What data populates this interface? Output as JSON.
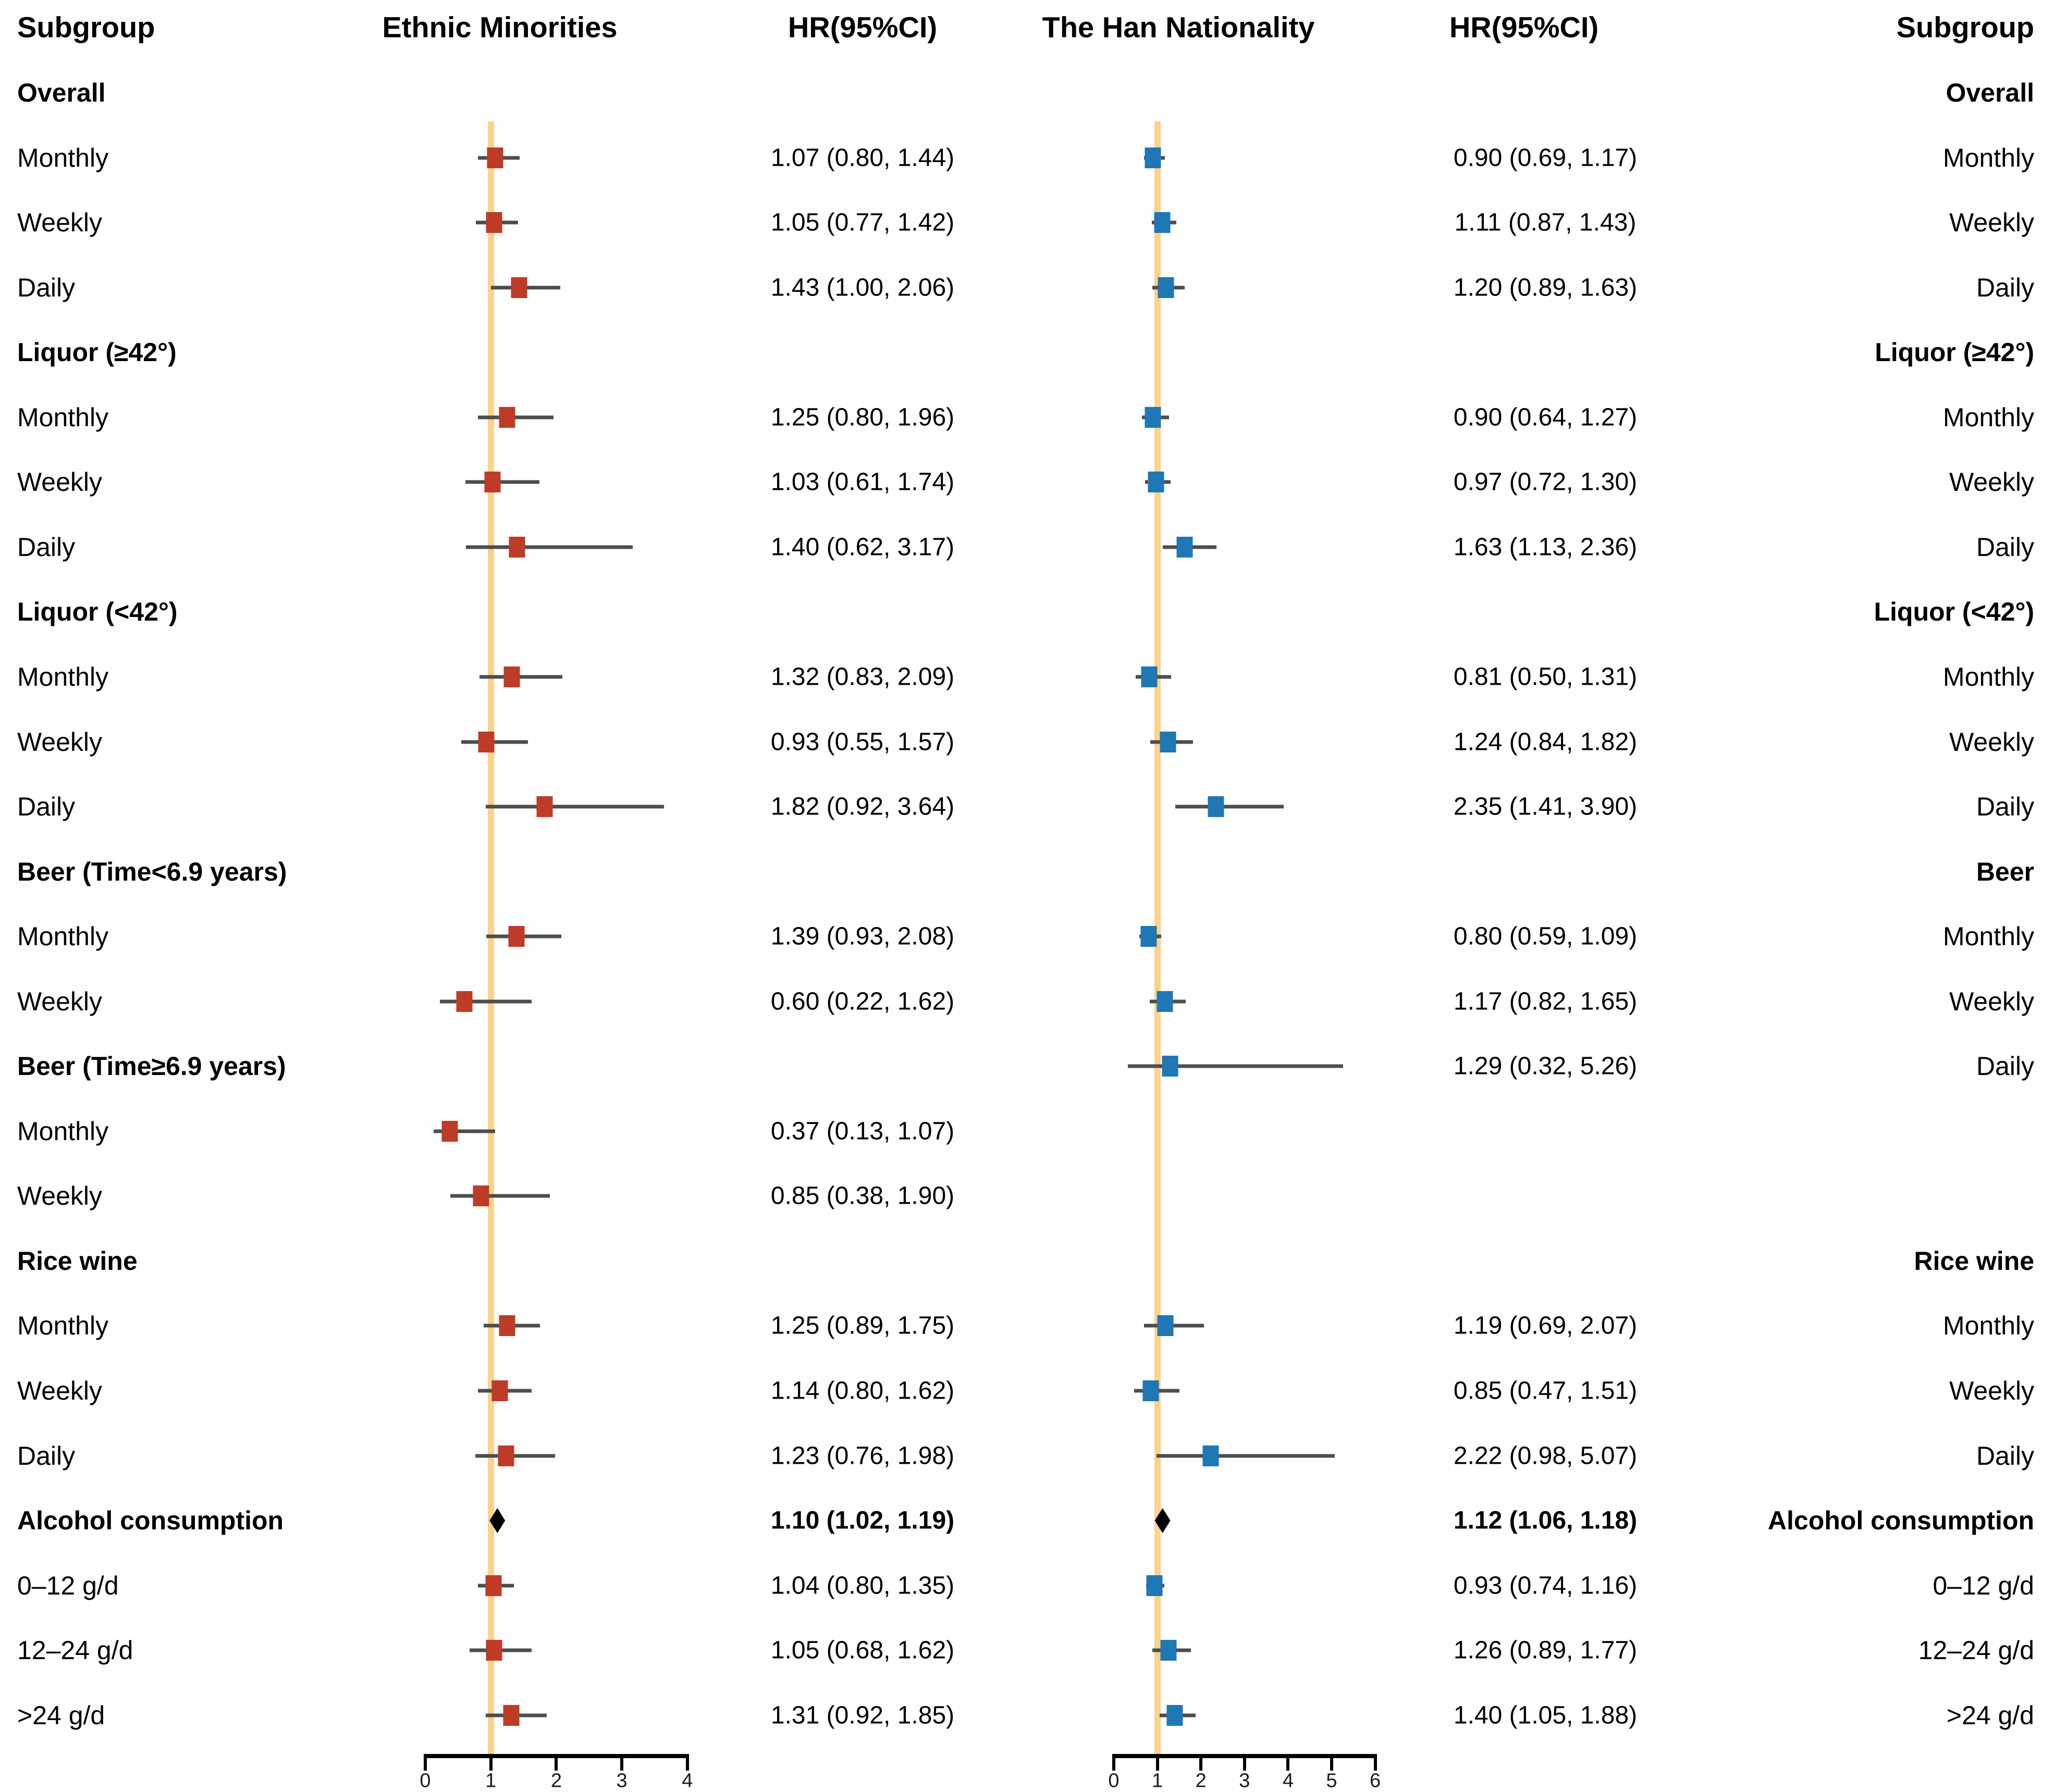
{
  "chart_data": {
    "type": "forest",
    "columns": {
      "subgroup_left": "Subgroup",
      "em_plot": "Ethnic Minorities",
      "em_hr": "HR(95%CI)",
      "han_plot": "The Han Nationality",
      "han_hr": "HR(95%CI)",
      "subgroup_right": "Subgroup"
    },
    "axes": {
      "ethnic_minorities": {
        "min": 0,
        "max": 4,
        "ticks": [
          0,
          1,
          2,
          3,
          4
        ],
        "ref_line": 1
      },
      "han_nationality": {
        "min": 0,
        "max": 6,
        "ticks": [
          0,
          1,
          2,
          3,
          4,
          5,
          6
        ],
        "ref_line": 1
      }
    },
    "colors": {
      "em_marker": "#be3b27",
      "han_marker": "#1f77b4",
      "ref_line": "#fad38c",
      "ci_line": "#4d4d4d",
      "summary_diamond": "#000000"
    },
    "rows": [
      {
        "left": "Overall",
        "left_bold": true,
        "right": "Overall",
        "right_bold": true
      },
      {
        "left": "Monthly",
        "right": "Monthly",
        "em": {
          "hr": 1.07,
          "lo": 0.8,
          "hi": 1.44,
          "label": "1.07 (0.80, 1.44)"
        },
        "han": {
          "hr": 0.9,
          "lo": 0.69,
          "hi": 1.17,
          "label": "0.90 (0.69, 1.17)"
        }
      },
      {
        "left": "Weekly",
        "right": "Weekly",
        "em": {
          "hr": 1.05,
          "lo": 0.77,
          "hi": 1.42,
          "label": "1.05 (0.77, 1.42)"
        },
        "han": {
          "hr": 1.11,
          "lo": 0.87,
          "hi": 1.43,
          "label": "1.11 (0.87, 1.43)"
        }
      },
      {
        "left": "Daily",
        "right": "Daily",
        "em": {
          "hr": 1.43,
          "lo": 1.0,
          "hi": 2.06,
          "label": "1.43 (1.00, 2.06)"
        },
        "han": {
          "hr": 1.2,
          "lo": 0.89,
          "hi": 1.63,
          "label": "1.20 (0.89, 1.63)"
        }
      },
      {
        "left": "Liquor (≥42°)",
        "left_bold": true,
        "right": "Liquor (≥42°)",
        "right_bold": true
      },
      {
        "left": "Monthly",
        "right": "Monthly",
        "em": {
          "hr": 1.25,
          "lo": 0.8,
          "hi": 1.96,
          "label": "1.25 (0.80, 1.96)"
        },
        "han": {
          "hr": 0.9,
          "lo": 0.64,
          "hi": 1.27,
          "label": "0.90 (0.64, 1.27)"
        }
      },
      {
        "left": "Weekly",
        "right": "Weekly",
        "em": {
          "hr": 1.03,
          "lo": 0.61,
          "hi": 1.74,
          "label": "1.03 (0.61, 1.74)"
        },
        "han": {
          "hr": 0.97,
          "lo": 0.72,
          "hi": 1.3,
          "label": "0.97 (0.72, 1.30)"
        }
      },
      {
        "left": "Daily",
        "right": "Daily",
        "em": {
          "hr": 1.4,
          "lo": 0.62,
          "hi": 3.17,
          "label": "1.40 (0.62, 3.17)"
        },
        "han": {
          "hr": 1.63,
          "lo": 1.13,
          "hi": 2.36,
          "label": "1.63 (1.13, 2.36)"
        }
      },
      {
        "left": "Liquor (<42°)",
        "left_bold": true,
        "right": "Liquor (<42°)",
        "right_bold": true
      },
      {
        "left": "Monthly",
        "right": "Monthly",
        "em": {
          "hr": 1.32,
          "lo": 0.83,
          "hi": 2.09,
          "label": "1.32 (0.83, 2.09)"
        },
        "han": {
          "hr": 0.81,
          "lo": 0.5,
          "hi": 1.31,
          "label": "0.81 (0.50, 1.31)"
        }
      },
      {
        "left": "Weekly",
        "right": "Weekly",
        "em": {
          "hr": 0.93,
          "lo": 0.55,
          "hi": 1.57,
          "label": "0.93 (0.55, 1.57)"
        },
        "han": {
          "hr": 1.24,
          "lo": 0.84,
          "hi": 1.82,
          "label": "1.24 (0.84, 1.82)"
        }
      },
      {
        "left": "Daily",
        "right": "Daily",
        "em": {
          "hr": 1.82,
          "lo": 0.92,
          "hi": 3.64,
          "label": "1.82 (0.92, 3.64)"
        },
        "han": {
          "hr": 2.35,
          "lo": 1.41,
          "hi": 3.9,
          "label": "2.35 (1.41, 3.90)"
        }
      },
      {
        "left": "Beer (Time<6.9 years)",
        "left_bold": true,
        "right": "Beer",
        "right_bold": true
      },
      {
        "left": "Monthly",
        "right": "Monthly",
        "em": {
          "hr": 1.39,
          "lo": 0.93,
          "hi": 2.08,
          "label": "1.39 (0.93, 2.08)"
        },
        "han": {
          "hr": 0.8,
          "lo": 0.59,
          "hi": 1.09,
          "label": "0.80 (0.59, 1.09)"
        }
      },
      {
        "left": "Weekly",
        "right": "Weekly",
        "em": {
          "hr": 0.6,
          "lo": 0.22,
          "hi": 1.62,
          "label": "0.60 (0.22, 1.62)"
        },
        "han": {
          "hr": 1.17,
          "lo": 0.82,
          "hi": 1.65,
          "label": "1.17 (0.82, 1.65)"
        }
      },
      {
        "left": "Beer (Time≥6.9 years)",
        "left_bold": true,
        "right": "Daily",
        "right_bold": false,
        "han": {
          "hr": 1.29,
          "lo": 0.32,
          "hi": 5.26,
          "label": "1.29 (0.32, 5.26)"
        }
      },
      {
        "left": "Monthly",
        "em": {
          "hr": 0.37,
          "lo": 0.13,
          "hi": 1.07,
          "label": "0.37 (0.13, 1.07)"
        }
      },
      {
        "left": "Weekly",
        "em": {
          "hr": 0.85,
          "lo": 0.38,
          "hi": 1.9,
          "label": "0.85 (0.38, 1.90)"
        }
      },
      {
        "left": "Rice wine",
        "left_bold": true,
        "right": "Rice wine",
        "right_bold": true
      },
      {
        "left": "Monthly",
        "right": "Monthly",
        "em": {
          "hr": 1.25,
          "lo": 0.89,
          "hi": 1.75,
          "label": "1.25 (0.89, 1.75)"
        },
        "han": {
          "hr": 1.19,
          "lo": 0.69,
          "hi": 2.07,
          "label": "1.19 (0.69, 2.07)"
        }
      },
      {
        "left": "Weekly",
        "right": "Weekly",
        "em": {
          "hr": 1.14,
          "lo": 0.8,
          "hi": 1.62,
          "label": "1.14 (0.80, 1.62)"
        },
        "han": {
          "hr": 0.85,
          "lo": 0.47,
          "hi": 1.51,
          "label": "0.85 (0.47, 1.51)"
        }
      },
      {
        "left": "Daily",
        "right": "Daily",
        "em": {
          "hr": 1.23,
          "lo": 0.76,
          "hi": 1.98,
          "label": "1.23 (0.76, 1.98)"
        },
        "han": {
          "hr": 2.22,
          "lo": 0.98,
          "hi": 5.07,
          "label": "2.22 (0.98, 5.07)"
        }
      },
      {
        "left": "Alcohol consumption",
        "left_bold": true,
        "right": "Alcohol consumption",
        "right_bold": true,
        "summary": true,
        "em": {
          "hr": 1.1,
          "lo": 1.02,
          "hi": 1.19,
          "label": "1.10 (1.02, 1.19)"
        },
        "han": {
          "hr": 1.12,
          "lo": 1.06,
          "hi": 1.18,
          "label": "1.12 (1.06, 1.18)"
        }
      },
      {
        "left": "0–12 g/d",
        "right": "0–12 g/d",
        "em": {
          "hr": 1.04,
          "lo": 0.8,
          "hi": 1.35,
          "label": "1.04 (0.80, 1.35)"
        },
        "han": {
          "hr": 0.93,
          "lo": 0.74,
          "hi": 1.16,
          "label": "0.93 (0.74, 1.16)"
        }
      },
      {
        "left": "12–24 g/d",
        "right": "12–24 g/d",
        "em": {
          "hr": 1.05,
          "lo": 0.68,
          "hi": 1.62,
          "label": "1.05 (0.68, 1.62)"
        },
        "han": {
          "hr": 1.26,
          "lo": 0.89,
          "hi": 1.77,
          "label": "1.26 (0.89, 1.77)"
        }
      },
      {
        "left": ">24 g/d",
        "right": ">24 g/d",
        "em": {
          "hr": 1.31,
          "lo": 0.92,
          "hi": 1.85,
          "label": "1.31 (0.92, 1.85)"
        },
        "han": {
          "hr": 1.4,
          "lo": 1.05,
          "hi": 1.88,
          "label": "1.40 (1.05, 1.88)"
        }
      }
    ]
  }
}
